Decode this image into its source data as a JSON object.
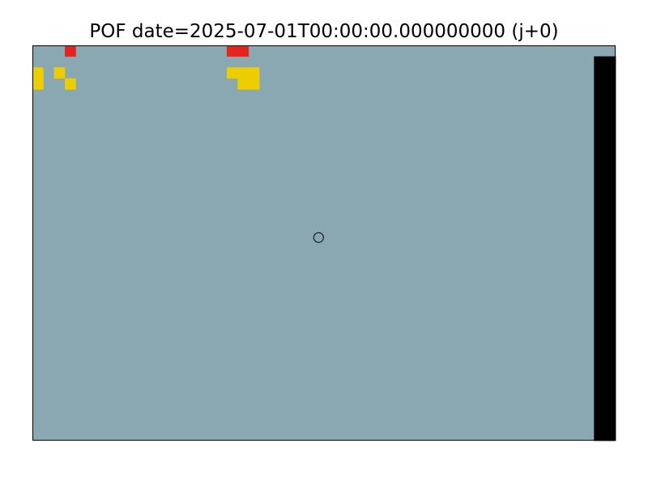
{
  "chart_data": {
    "type": "heatmap",
    "title": "POF date=2025-07-01T00:00:00.000000000 (j+0)",
    "xlabel": "",
    "ylabel": "",
    "grid": false,
    "legend": false,
    "background_color": "#8aa8b1",
    "level_colors": {
      "1": "#ebcd00",
      "2": "#e38610",
      "3": "#e5241e",
      "4": "#000000"
    },
    "level_legend": "0 = background (no risk shown), 1 = yellow, 2 = orange, 3 = red, 4 = black",
    "marker": {
      "shape": "circle",
      "row": 17,
      "col": 26
    },
    "grid_rows": [
      "000300000000000000330000000000000000000000000000000000",
      "0000000000000000000000000000000000000000000000000000",
      "1010000000000000001110000000000000000000000000000000",
      "1001000000000000000110000000000000000000000000000000",
      "0000000000000000000000000000000000000000000000000000",
      "0000000000000000000000000000000000000000000000000000",
      "0000000000000000000000000000000000000000000000000000",
      "0000000000000000000000000000000000000000000000000000",
      "0000000000000000000000000000000000000000000000000000",
      "0000000000000000000000000000000000000000000000000000",
      "0000000000000000000000000000000000000000000000000000",
      "0000000000000000000000000000000000000000000000000000",
      "0000000000000000000000000000000000000000000000000000",
      "0000000000000000000000000000000000000000000000000000",
      "0000000000000000000000000000000000000000000000000000",
      "0000000000000000000000000000000000000000000000000000",
      "0000000000000000000000000000000000000000000000000000",
      "0000000000000000000000000000000000000000000000000000",
      "0000000000000000000000000000000000000000000000000000",
      "0000000000000000000000000000000000000000000000000000",
      "0000000000000000000000000000000000000000000000000000",
      "0000000000000000000000000000000000000000000000000000",
      "0000000000000000000000000000000000000000000000000000",
      "0000000000000000000000000000000000000000000000000000",
      "0000000000000000000000000000000000000000000000000000",
      "0000000000000000000000000000000000000000000000000000",
      "0000000000000000000000000000000000000000000000000000",
      "0000000000000000000000000000000000000000000000000000",
      "0000000000000000000000000000000000000000000000000000",
      "0000000000000000000000000000000000000000000000000000",
      "0000000000000000000000000000000000000000000000000000",
      "0000000000000000000000000000000000000000000000000000",
      "0000000000000000000000000000000000000000000000000000",
      "0000000000000000000000000000000000000000000000000000",
      "0000000000000000000000000000000000000000000000000000",
      "0000000000000000000000000000000000000000000000000000"
    ]
  }
}
